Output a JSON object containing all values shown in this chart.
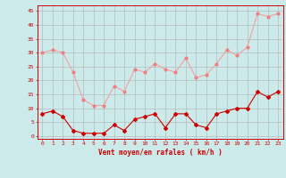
{
  "hours": [
    0,
    1,
    2,
    3,
    4,
    5,
    6,
    7,
    8,
    9,
    10,
    11,
    12,
    13,
    14,
    15,
    16,
    17,
    18,
    19,
    20,
    21,
    22,
    23
  ],
  "rafales": [
    30,
    31,
    30,
    23,
    13,
    11,
    11,
    18,
    16,
    24,
    23,
    26,
    24,
    23,
    28,
    21,
    22,
    26,
    31,
    29,
    32,
    44,
    43,
    44
  ],
  "moyen": [
    8,
    9,
    7,
    2,
    1,
    1,
    1,
    4,
    2,
    6,
    7,
    8,
    3,
    8,
    8,
    4,
    3,
    8,
    9,
    10,
    10,
    16,
    14,
    16
  ],
  "bg_color": "#cceaea",
  "grid_color": "#aaaaaa",
  "line_color_rafales": "#f4a0a0",
  "line_color_moyen": "#cc0000",
  "marker_color_rafales": "#f08080",
  "marker_color_moyen": "#cc0000",
  "xlabel": "Vent moyen/en rafales ( km/h )",
  "yticks": [
    0,
    5,
    10,
    15,
    20,
    25,
    30,
    35,
    40,
    45
  ],
  "xticks": [
    0,
    1,
    2,
    3,
    4,
    5,
    6,
    7,
    8,
    9,
    10,
    11,
    12,
    13,
    14,
    15,
    16,
    17,
    18,
    19,
    20,
    21,
    22,
    23
  ],
  "ylim": [
    -1,
    47
  ],
  "xlim": [
    -0.5,
    23.5
  ]
}
